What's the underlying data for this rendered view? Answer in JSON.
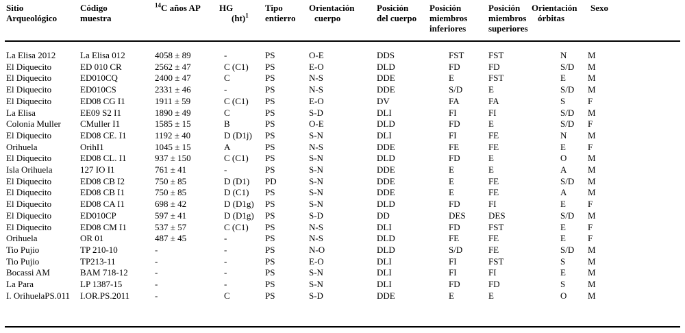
{
  "table": {
    "headers": {
      "sitio": [
        "Sitio",
        "Arqueológico"
      ],
      "codigo": [
        "Código",
        "muestra"
      ],
      "c14_sup": "14",
      "c14_text": "C años AP",
      "hg_line1": "HG",
      "hg_line2": "(ht)",
      "hg_sup": "1",
      "tipo": [
        "Tipo",
        "entierro"
      ],
      "orient_cuerpo": [
        "Orientación",
        "cuerpo"
      ],
      "posicion": [
        "Posición",
        "del cuerpo"
      ],
      "pos_inf": [
        "Posición",
        "miembros",
        "inferiores"
      ],
      "pos_sup": [
        "Posición",
        "miembros",
        "superiores"
      ],
      "orient_orbitas": [
        "Orientación",
        "órbitas"
      ],
      "sexo": [
        "Sexo"
      ]
    },
    "rows": [
      [
        "La Elisa 2012",
        "La Elisa 012",
        "4058 ± 89",
        "-",
        "PS",
        "O-E",
        "DDS",
        "FST",
        "FST",
        "N",
        "M"
      ],
      [
        "El Diquecito",
        "ED 010  CR",
        "2562 ± 47",
        "C (C1)",
        "PS",
        "E-O",
        "DLD",
        "FD",
        "FD",
        "S/D",
        "M"
      ],
      [
        "El Diquecito",
        "ED010CQ",
        "2400 ± 47",
        "C",
        "PS",
        "N-S",
        "DDE",
        "E",
        "FST",
        "E",
        "M"
      ],
      [
        "El Diquecito",
        "ED010CS",
        "2331 ± 46",
        "-",
        "PS",
        "N-S",
        "DDE",
        "S/D",
        "E",
        "S/D",
        "M"
      ],
      [
        "El Diquecito",
        "ED08 CG I1",
        "1911 ± 59",
        "C (C1)",
        "PS",
        "E-O",
        "DV",
        "FA",
        "FA",
        "S",
        "F"
      ],
      [
        "La Elisa",
        "EE09 S2 I1",
        "1890 ± 49",
        "C",
        "PS",
        "S-D",
        "DLI",
        "FI",
        "FI",
        "S/D",
        "M"
      ],
      [
        "Colonia Muller",
        "CMuller I1",
        "1585 ± 15",
        "B",
        "PS",
        "O-E",
        "DLD",
        "FD",
        "E",
        "S/D",
        "F"
      ],
      [
        "El Diquecito",
        "ED08 CE. I1",
        "1192 ± 40",
        "D (D1j)",
        "PS",
        "S-N",
        "DLI",
        "FI",
        "FE",
        "N",
        "M"
      ],
      [
        "Orihuela",
        "OrihI1",
        "1045 ± 15",
        "A",
        "PS",
        "N-S",
        "DDE",
        "FE",
        "FE",
        "E",
        "F"
      ],
      [
        "El Diquecito",
        "ED08 CL. I1",
        "937 ± 150",
        "C (C1)",
        "PS",
        "S-N",
        "DLD",
        "FD",
        "E",
        "O",
        "M"
      ],
      [
        "Isla Orihuela",
        "127 IO I1",
        "761 ± 41",
        "-",
        "PS",
        "S-N",
        "DDE",
        "E",
        "E",
        "A",
        "M"
      ],
      [
        "El Diquecito",
        "ED08 CB I2",
        "750 ± 85",
        "D (D1)",
        "PD",
        "S-N",
        "DDE",
        "E",
        "FE",
        "S/D",
        "M"
      ],
      [
        "El Diquecito",
        "ED08 CB I1",
        "750 ± 85",
        "D (C1)",
        "PS",
        "S-N",
        "DDE",
        "E",
        "FE",
        "A",
        "M"
      ],
      [
        "El Diquecito",
        "ED08 CA I1",
        "698 ± 42",
        "D (D1g)",
        "PS",
        "S-N",
        "DLD",
        "FD",
        "FI",
        "E",
        "F"
      ],
      [
        "El Diquecito",
        "ED010CP",
        "597 ± 41",
        "D (D1g)",
        "PS",
        "S-D",
        "DD",
        "DES",
        "DES",
        "S/D",
        "M"
      ],
      [
        "El Diquecito",
        "ED08 CM I1",
        "537 ± 57",
        "C (C1)",
        "PS",
        "N-S",
        "DLI",
        "FD",
        "FST",
        "E",
        "F"
      ],
      [
        "Orihuela",
        "OR 01",
        "487 ± 45",
        "-",
        "PS",
        "N-S",
        "DLD",
        "FE",
        "FE",
        "E",
        "F"
      ],
      [
        "Tio Pujio",
        "TP 210-10",
        "-",
        "-",
        "PS",
        "N-O",
        "DLD",
        "S/D",
        "FE",
        "S/D",
        "M"
      ],
      [
        "Tio Pujio",
        "TP213-11",
        "-",
        "-",
        "PS",
        "E-O",
        "DLI",
        "FI",
        "FST",
        "S",
        "M"
      ],
      [
        "Bocassi AM",
        "BAM 718-12",
        "-",
        "-",
        "PS",
        "S-N",
        "DLI",
        "FI",
        "FI",
        "E",
        "M"
      ],
      [
        "La Para",
        "LP 1387-15",
        "-",
        "-",
        "PS",
        "S-N",
        "DLI",
        "FD",
        "FD",
        "S",
        "M"
      ],
      [
        "I. OrihuelaPS.011",
        "I.OR.PS.2011",
        "-",
        "C",
        "PS",
        "S-D",
        "DDE",
        "E",
        "E",
        "O",
        "M"
      ]
    ]
  }
}
